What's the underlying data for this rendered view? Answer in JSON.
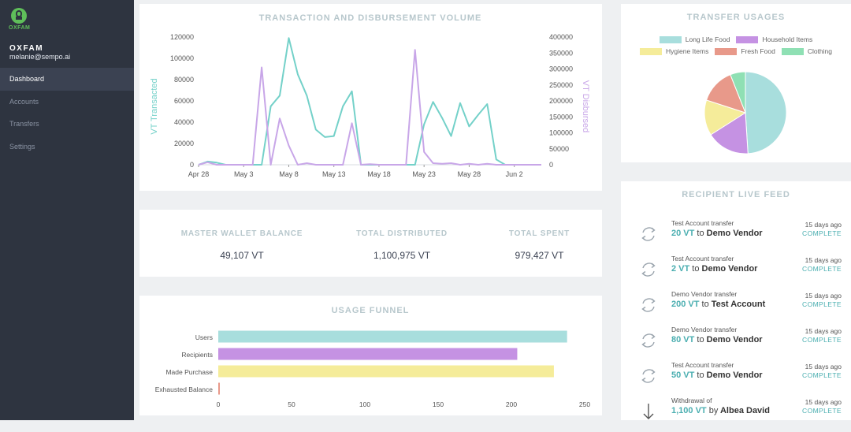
{
  "sidebar": {
    "logo_text": "OXFAM",
    "org_name": "OXFAM",
    "email": "melanie@sempo.ai",
    "items": [
      {
        "label": "Dashboard"
      },
      {
        "label": "Accounts"
      },
      {
        "label": "Transfers"
      },
      {
        "label": "Settings"
      }
    ]
  },
  "volume": {
    "title": "TRANSACTION AND DISBURSEMENT VOLUME",
    "colors": {
      "transacted": "#74d1c9",
      "disbursed": "#c8a6e8"
    }
  },
  "stats": [
    {
      "label": "MASTER WALLET BALANCE",
      "value": "49,107 VT"
    },
    {
      "label": "TOTAL DISTRIBUTED",
      "value": "1,100,975 VT"
    },
    {
      "label": "TOTAL SPENT",
      "value": "979,427 VT"
    }
  ],
  "funnel": {
    "title": "USAGE FUNNEL"
  },
  "usages": {
    "title": "TRANSFER USAGES"
  },
  "feed": {
    "title": "RECIPIENT LIVE FEED",
    "items": [
      {
        "icon": "transfer-icon",
        "title": "Test Account transfer",
        "amount": "20 VT",
        "mid": "to",
        "target": "Demo Vendor",
        "time": "15 days ago",
        "status": "COMPLETE"
      },
      {
        "icon": "transfer-icon",
        "title": "Test Account transfer",
        "amount": "2 VT",
        "mid": "to",
        "target": "Demo Vendor",
        "time": "15 days ago",
        "status": "COMPLETE"
      },
      {
        "icon": "transfer-icon",
        "title": "Demo Vendor transfer",
        "amount": "200 VT",
        "mid": "to",
        "target": "Test Account",
        "time": "15 days ago",
        "status": "COMPLETE"
      },
      {
        "icon": "transfer-icon",
        "title": "Demo Vendor transfer",
        "amount": "80 VT",
        "mid": "to",
        "target": "Demo Vendor",
        "time": "15 days ago",
        "status": "COMPLETE"
      },
      {
        "icon": "transfer-icon",
        "title": "Test Account transfer",
        "amount": "50 VT",
        "mid": "to",
        "target": "Demo Vendor",
        "time": "15 days ago",
        "status": "COMPLETE"
      },
      {
        "icon": "withdrawal-icon",
        "title": "Withdrawal of",
        "amount": "1,100 VT",
        "mid": "by",
        "target": "Albea David",
        "time": "15 days ago",
        "status": "COMPLETE"
      }
    ]
  },
  "chart_data": [
    {
      "type": "line",
      "title": "TRANSACTION AND DISBURSEMENT VOLUME",
      "x_tick_labels": [
        "Apr 28",
        "May 3",
        "May 8",
        "May 13",
        "May 18",
        "May 23",
        "May 28",
        "Jun 2"
      ],
      "ylabel": "VT Transacted",
      "ylabel_right": "VT Disbursed",
      "ylim": [
        0,
        120000
      ],
      "ylim_right": [
        0,
        400000
      ],
      "yticks": [
        0,
        20000,
        40000,
        60000,
        80000,
        100000,
        120000
      ],
      "yticks_right": [
        0,
        50000,
        100000,
        150000,
        200000,
        250000,
        300000,
        350000,
        400000
      ],
      "x": [
        "Apr 28",
        "Apr 29",
        "Apr 30",
        "May 1",
        "May 2",
        "May 3",
        "May 4",
        "May 5",
        "May 6",
        "May 7",
        "May 8",
        "May 9",
        "May 10",
        "May 11",
        "May 12",
        "May 13",
        "May 14",
        "May 15",
        "May 16",
        "May 17",
        "May 18",
        "May 19",
        "May 20",
        "May 21",
        "May 22",
        "May 23",
        "May 24",
        "May 25",
        "May 26",
        "May 27",
        "May 28",
        "May 29",
        "May 30",
        "May 31",
        "Jun 1",
        "Jun 2",
        "Jun 3",
        "Jun 4",
        "Jun 5"
      ],
      "series": [
        {
          "name": "VT Transacted",
          "axis": "left",
          "color": "#74d1c9",
          "values": [
            0,
            3000,
            2000,
            0,
            0,
            0,
            0,
            0,
            55000,
            65000,
            119000,
            85000,
            65000,
            33000,
            26000,
            27000,
            55000,
            69000,
            0,
            0,
            0,
            0,
            0,
            0,
            0,
            38000,
            59000,
            44000,
            27000,
            58000,
            36000,
            47000,
            57000,
            5000,
            0,
            0,
            0,
            0,
            0
          ]
        },
        {
          "name": "VT Disbursed",
          "axis": "right",
          "color": "#c8a6e8",
          "values": [
            0,
            8000,
            0,
            0,
            0,
            0,
            0,
            305000,
            0,
            145000,
            60000,
            0,
            5000,
            0,
            0,
            0,
            0,
            130000,
            0,
            2000,
            0,
            0,
            0,
            0,
            360000,
            40000,
            5000,
            3000,
            5000,
            0,
            3000,
            0,
            3000,
            0,
            0,
            0,
            0,
            0,
            0
          ]
        }
      ]
    },
    {
      "type": "bar",
      "orientation": "horizontal",
      "title": "USAGE FUNNEL",
      "categories": [
        "Users",
        "Recipients",
        "Made Purchase",
        "Exhausted Balance"
      ],
      "values": [
        238,
        204,
        229,
        1
      ],
      "colors": [
        "#a8dedd",
        "#c592e3",
        "#f5ec9a",
        "#e8998a"
      ],
      "xlim": [
        0,
        250
      ],
      "xticks": [
        0,
        50,
        100,
        150,
        200,
        250
      ]
    },
    {
      "type": "pie",
      "title": "TRANSFER USAGES",
      "categories": [
        "Long Life Food",
        "Household Items",
        "Hygiene Items",
        "Fresh Food",
        "Clothing"
      ],
      "values": [
        49,
        17,
        14,
        14,
        6
      ],
      "colors": [
        "#a8dedd",
        "#c592e3",
        "#f5ec9a",
        "#e8998a",
        "#8fe0b4"
      ],
      "legend": "top"
    }
  ]
}
